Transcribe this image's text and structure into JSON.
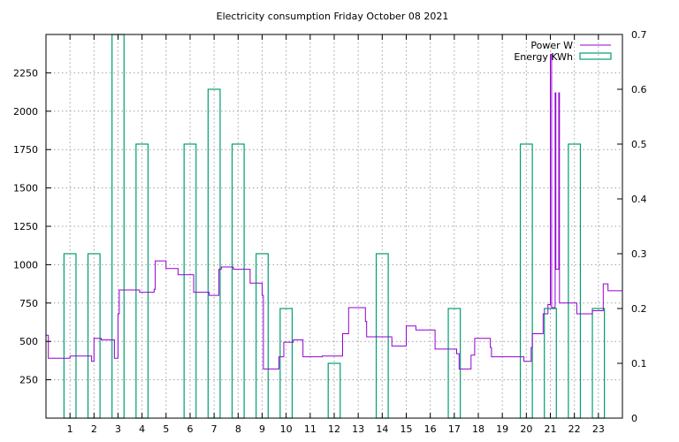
{
  "chart_data": {
    "type": "line",
    "title": "Electricity consumption Friday October 08 2021",
    "x_ticks": [
      1,
      2,
      3,
      4,
      5,
      6,
      7,
      8,
      9,
      10,
      11,
      12,
      13,
      14,
      15,
      16,
      17,
      18,
      19,
      20,
      21,
      22,
      23
    ],
    "xlim": [
      0,
      24
    ],
    "y_left": {
      "ticks": [
        250,
        500,
        750,
        1000,
        1250,
        1500,
        1750,
        2000,
        2250
      ],
      "lim": [
        0,
        2500
      ]
    },
    "y_right": {
      "ticks": [
        0,
        0.1,
        0.2,
        0.3,
        0.4,
        0.5,
        0.6,
        0.7
      ],
      "tick_labels": [
        "0",
        "0.1",
        "0.2",
        "0.3",
        "0.4",
        "0.5",
        "0.6",
        "0.7"
      ],
      "lim": [
        0,
        0.7
      ]
    },
    "grid": true,
    "legend_position": "top-right",
    "series": [
      {
        "name": "Power W",
        "axis": "left",
        "color": "#9400d3",
        "points": [
          [
            0.0,
            540
          ],
          [
            0.1,
            540
          ],
          [
            0.1,
            390
          ],
          [
            1.0,
            390
          ],
          [
            1.0,
            405
          ],
          [
            1.9,
            405
          ],
          [
            1.9,
            370
          ],
          [
            2.0,
            370
          ],
          [
            2.0,
            520
          ],
          [
            2.3,
            520
          ],
          [
            2.3,
            510
          ],
          [
            2.85,
            510
          ],
          [
            2.85,
            390
          ],
          [
            3.0,
            390
          ],
          [
            3.0,
            680
          ],
          [
            3.05,
            680
          ],
          [
            3.05,
            835
          ],
          [
            3.9,
            835
          ],
          [
            3.9,
            820
          ],
          [
            4.5,
            820
          ],
          [
            4.5,
            840
          ],
          [
            4.55,
            840
          ],
          [
            4.55,
            1025
          ],
          [
            5.0,
            1025
          ],
          [
            5.0,
            975
          ],
          [
            5.5,
            975
          ],
          [
            5.5,
            935
          ],
          [
            6.15,
            935
          ],
          [
            6.15,
            820
          ],
          [
            6.8,
            820
          ],
          [
            6.8,
            800
          ],
          [
            7.2,
            800
          ],
          [
            7.2,
            970
          ],
          [
            7.3,
            970
          ],
          [
            7.3,
            985
          ],
          [
            7.8,
            985
          ],
          [
            7.8,
            970
          ],
          [
            8.5,
            970
          ],
          [
            8.5,
            880
          ],
          [
            9.0,
            880
          ],
          [
            9.0,
            800
          ],
          [
            9.05,
            800
          ],
          [
            9.05,
            320
          ],
          [
            9.7,
            320
          ],
          [
            9.7,
            400
          ],
          [
            9.9,
            400
          ],
          [
            9.9,
            495
          ],
          [
            10.3,
            495
          ],
          [
            10.3,
            510
          ],
          [
            10.7,
            510
          ],
          [
            10.7,
            400
          ],
          [
            11.5,
            400
          ],
          [
            11.5,
            405
          ],
          [
            12.35,
            405
          ],
          [
            12.35,
            550
          ],
          [
            12.6,
            550
          ],
          [
            12.6,
            720
          ],
          [
            13.3,
            720
          ],
          [
            13.3,
            630
          ],
          [
            13.35,
            630
          ],
          [
            13.35,
            530
          ],
          [
            14.4,
            530
          ],
          [
            14.4,
            470
          ],
          [
            15.0,
            470
          ],
          [
            15.0,
            600
          ],
          [
            15.4,
            600
          ],
          [
            15.4,
            575
          ],
          [
            16.2,
            575
          ],
          [
            16.2,
            450
          ],
          [
            17.1,
            450
          ],
          [
            17.1,
            420
          ],
          [
            17.2,
            420
          ],
          [
            17.2,
            320
          ],
          [
            17.7,
            320
          ],
          [
            17.7,
            410
          ],
          [
            17.85,
            410
          ],
          [
            17.85,
            520
          ],
          [
            18.5,
            520
          ],
          [
            18.5,
            460
          ],
          [
            18.55,
            460
          ],
          [
            18.55,
            400
          ],
          [
            19.9,
            400
          ],
          [
            19.9,
            370
          ],
          [
            20.2,
            370
          ],
          [
            20.2,
            460
          ],
          [
            20.25,
            460
          ],
          [
            20.25,
            550
          ],
          [
            20.7,
            550
          ],
          [
            20.7,
            680
          ],
          [
            20.9,
            680
          ],
          [
            20.9,
            740
          ],
          [
            21.0,
            740
          ],
          [
            21.0,
            2370
          ],
          [
            21.05,
            2370
          ],
          [
            21.05,
            720
          ],
          [
            21.2,
            720
          ],
          [
            21.2,
            2120
          ],
          [
            21.23,
            2120
          ],
          [
            21.23,
            970
          ],
          [
            21.35,
            970
          ],
          [
            21.35,
            2120
          ],
          [
            21.38,
            2120
          ],
          [
            21.38,
            750
          ],
          [
            22.1,
            750
          ],
          [
            22.1,
            680
          ],
          [
            22.75,
            680
          ],
          [
            22.75,
            700
          ],
          [
            23.2,
            700
          ],
          [
            23.2,
            875
          ],
          [
            23.4,
            875
          ],
          [
            23.4,
            830
          ],
          [
            24.0,
            830
          ]
        ]
      },
      {
        "name": "Energy KWh",
        "axis": "right",
        "color": "#009e73",
        "bars": [
          {
            "x": 1.0,
            "value": 0.3
          },
          {
            "x": 2.0,
            "value": 0.3
          },
          {
            "x": 3.0,
            "value": 0.7
          },
          {
            "x": 4.0,
            "value": 0.5
          },
          {
            "x": 6.0,
            "value": 0.5
          },
          {
            "x": 7.0,
            "value": 0.6
          },
          {
            "x": 8.0,
            "value": 0.5
          },
          {
            "x": 9.0,
            "value": 0.3
          },
          {
            "x": 10.0,
            "value": 0.2
          },
          {
            "x": 12.0,
            "value": 0.1
          },
          {
            "x": 14.0,
            "value": 0.3
          },
          {
            "x": 17.0,
            "value": 0.2
          },
          {
            "x": 20.0,
            "value": 0.5
          },
          {
            "x": 21.0,
            "value": 0.2
          },
          {
            "x": 22.0,
            "value": 0.5
          },
          {
            "x": 23.0,
            "value": 0.2
          }
        ],
        "bar_width": 0.5
      }
    ]
  }
}
